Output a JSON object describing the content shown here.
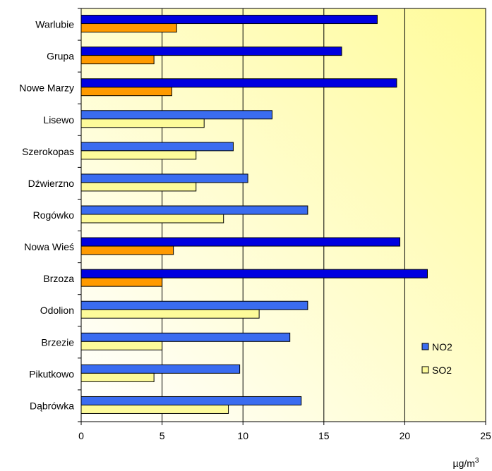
{
  "chart_data": {
    "type": "bar",
    "orientation": "horizontal",
    "categories": [
      "Warlubie",
      "Grupa",
      "Nowe Marzy",
      "Lisewo",
      "Szerokopas",
      "Dźwierzno",
      "Rogówko",
      "Nowa Wieś",
      "Brzoza",
      "Odolion",
      "Brzezie",
      "Pikutkowo",
      "Dąbrówka"
    ],
    "series": [
      {
        "name": "NO2",
        "values": [
          18.3,
          16.1,
          19.5,
          11.8,
          9.4,
          10.3,
          14.0,
          19.7,
          21.4,
          14.0,
          12.9,
          9.8,
          13.6
        ]
      },
      {
        "name": "SO2",
        "values": [
          5.9,
          4.5,
          5.6,
          7.6,
          7.1,
          7.1,
          8.8,
          5.7,
          5.0,
          11.0,
          5.0,
          4.5,
          9.1
        ]
      }
    ],
    "highlighted_categories": [
      "Warlubie",
      "Grupa",
      "Nowe Marzy",
      "Nowa Wieś",
      "Brzoza"
    ],
    "colors": {
      "NO2": "#3a6cf0",
      "NO2_highlight": "#0000e0",
      "SO2": "#fdfb9a",
      "SO2_highlight": "#ff9a00",
      "background_left": "#ffffff",
      "background_right": "#fffb9a"
    },
    "x_ticks": [
      0,
      5,
      10,
      15,
      20,
      25
    ],
    "xlim": [
      0,
      25
    ],
    "x_unit_base": "µg/m",
    "x_unit_exp": "3",
    "grid": true,
    "legend_position": "right"
  }
}
